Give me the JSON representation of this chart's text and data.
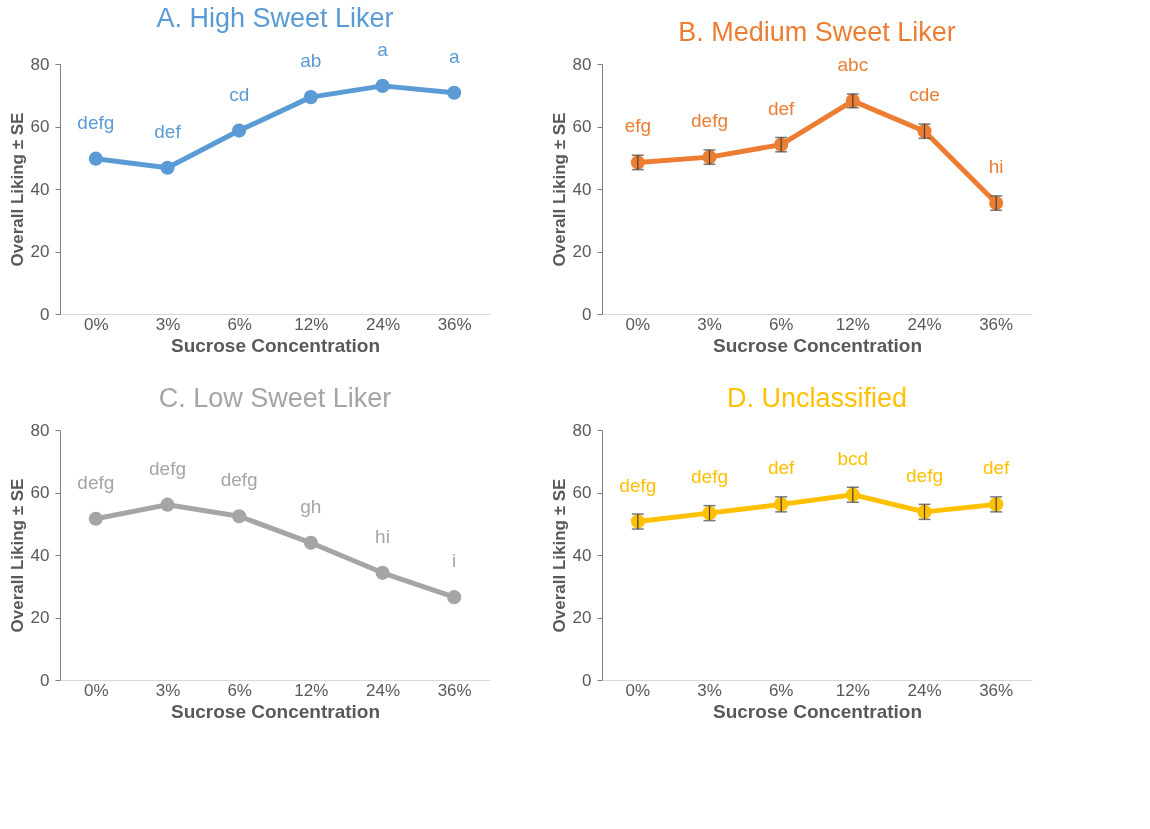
{
  "chart_data": [
    {
      "type": "line",
      "title": "A. High Sweet Liker",
      "xlabel": "Sucrose Concentration",
      "ylabel": "Overall Liking ± SE",
      "categories": [
        "0%",
        "3%",
        "6%",
        "12%",
        "24%",
        "36%"
      ],
      "ylim": [
        0,
        80
      ],
      "yticks": [
        0,
        20,
        40,
        60,
        80
      ],
      "marker": "circle",
      "series": [
        {
          "color": "#5b9bd5",
          "values": [
            49.7,
            46.8,
            58.7,
            69.4,
            73.0,
            70.8
          ]
        }
      ],
      "annotations": [
        {
          "text": "defg",
          "x": "0%",
          "y": 49.7
        },
        {
          "text": "def",
          "x": "3%",
          "y": 46.8
        },
        {
          "text": "cd",
          "x": "6%",
          "y": 58.7
        },
        {
          "text": "ab",
          "x": "12%",
          "y": 69.4
        },
        {
          "text": "a",
          "x": "24%",
          "y": 73.0
        },
        {
          "text": "a",
          "x": "36%",
          "y": 70.8
        }
      ]
    },
    {
      "type": "line",
      "title": "B. Medium Sweet Liker",
      "xlabel": "Sucrose Concentration",
      "ylabel": "Overall Liking ± SE",
      "categories": [
        "0%",
        "3%",
        "6%",
        "12%",
        "24%",
        "36%"
      ],
      "ylim": [
        0,
        80
      ],
      "yticks": [
        0,
        20,
        40,
        60,
        80
      ],
      "marker": "circle",
      "series": [
        {
          "color": "#ed7d31",
          "values": [
            48.5,
            50.2,
            54.2,
            68.2,
            58.5,
            35.5
          ],
          "errors": [
            2.3,
            2.3,
            2.3,
            2.2,
            2.3,
            2.3
          ]
        }
      ],
      "annotations": [
        {
          "text": "efg",
          "x": "0%",
          "y": 48.5
        },
        {
          "text": "defg",
          "x": "3%",
          "y": 50.2
        },
        {
          "text": "def",
          "x": "6%",
          "y": 54.2
        },
        {
          "text": "abc",
          "x": "12%",
          "y": 68.2
        },
        {
          "text": "cde",
          "x": "24%",
          "y": 58.5
        },
        {
          "text": "hi",
          "x": "36%",
          "y": 35.5
        }
      ]
    },
    {
      "type": "line",
      "title": "C. Low Sweet Liker",
      "xlabel": "Sucrose Concentration",
      "ylabel": "Overall Liking ± SE",
      "categories": [
        "0%",
        "3%",
        "6%",
        "12%",
        "24%",
        "36%"
      ],
      "ylim": [
        0,
        80
      ],
      "yticks": [
        0,
        20,
        40,
        60,
        80
      ],
      "marker": "circle",
      "series": [
        {
          "color": "#a5a5a5",
          "values": [
            51.6,
            56.1,
            52.4,
            43.9,
            34.3,
            26.5
          ]
        }
      ],
      "annotations": [
        {
          "text": "defg",
          "x": "0%",
          "y": 51.6
        },
        {
          "text": "defg",
          "x": "3%",
          "y": 56.1
        },
        {
          "text": "defg",
          "x": "6%",
          "y": 52.4
        },
        {
          "text": "gh",
          "x": "12%",
          "y": 43.9
        },
        {
          "text": "hi",
          "x": "24%",
          "y": 34.3
        },
        {
          "text": "i",
          "x": "36%",
          "y": 26.5
        }
      ]
    },
    {
      "type": "line",
      "title": "D. Unclassified",
      "xlabel": "Sucrose Concentration",
      "ylabel": "Overall Liking ± SE",
      "categories": [
        "0%",
        "3%",
        "6%",
        "12%",
        "24%",
        "36%"
      ],
      "ylim": [
        0,
        80
      ],
      "yticks": [
        0,
        20,
        40,
        60,
        80
      ],
      "marker": "circle",
      "series": [
        {
          "color": "#ffc000",
          "values": [
            50.7,
            53.4,
            56.2,
            59.3,
            53.8,
            56.2
          ],
          "errors": [
            2.4,
            2.4,
            2.4,
            2.4,
            2.4,
            2.4
          ]
        }
      ],
      "annotations": [
        {
          "text": "defg",
          "x": "0%",
          "y": 50.7
        },
        {
          "text": "defg",
          "x": "3%",
          "y": 53.4
        },
        {
          "text": "def",
          "x": "6%",
          "y": 56.2
        },
        {
          "text": "bcd",
          "x": "12%",
          "y": 59.3
        },
        {
          "text": "defg",
          "x": "24%",
          "y": 53.8
        },
        {
          "text": "def",
          "x": "36%",
          "y": 56.2
        }
      ]
    }
  ]
}
